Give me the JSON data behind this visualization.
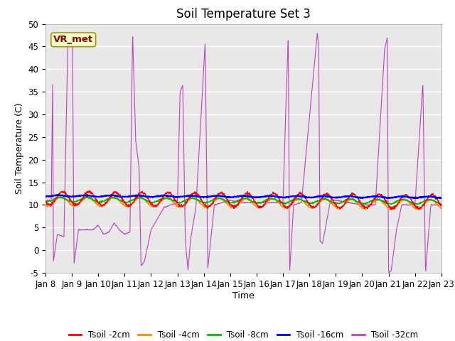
{
  "title": "Soil Temperature Set 3",
  "xlabel": "Time",
  "ylabel": "Soil Temperature (C)",
  "ylim": [
    -5,
    50
  ],
  "yticks": [
    -5,
    0,
    5,
    10,
    15,
    20,
    25,
    30,
    35,
    40,
    45,
    50
  ],
  "x_tick_labels": [
    "Jan 8",
    "Jan 9",
    "Jan 10",
    "Jan 11",
    "Jan 12",
    "Jan 13",
    "Jan 14",
    "Jan 15",
    "Jan 16",
    "Jan 17",
    "Jan 18",
    "Jan 19",
    "Jan 20",
    "Jan 21",
    "Jan 22",
    "Jan 23"
  ],
  "annotation_text": "VR_met",
  "annotation_bg": "#ffffcc",
  "annotation_border": "#999900",
  "annotation_text_color": "#880000",
  "colors": {
    "Tsoil -2cm": "#ff0000",
    "Tsoil -4cm": "#ff8800",
    "Tsoil -8cm": "#00bb00",
    "Tsoil -16cm": "#0000ee",
    "Tsoil -32cm": "#bb44bb"
  },
  "legend_labels": [
    "Tsoil -2cm",
    "Tsoil -4cm",
    "Tsoil -8cm",
    "Tsoil -16cm",
    "Tsoil -32cm"
  ],
  "background_color": "#e8e8e8",
  "grid_color": "#ffffff",
  "title_fontsize": 12,
  "axis_label_fontsize": 9,
  "tick_fontsize": 8.5
}
